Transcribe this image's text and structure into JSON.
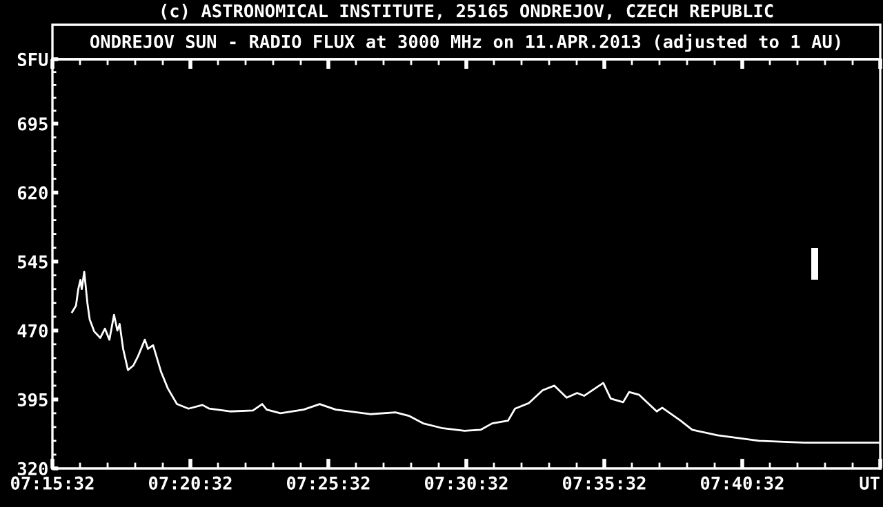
{
  "chart_data": {
    "type": "line",
    "title": "ONDREJOV SUN - RADIO FLUX at 3000 MHz on 11.APR.2013 (adjusted to 1 AU)",
    "annotations": [
      "(c) ASTRONOMICAL INSTITUTE, 25165 ONDREJOV, CZECH REPUBLIC"
    ],
    "xlim": [
      7.258889,
      7.758889
    ],
    "xticks": [
      {
        "value": 7.258889,
        "label": "07:15:32"
      },
      {
        "value": 7.342222,
        "label": "07:20:32"
      },
      {
        "value": 7.425556,
        "label": "07:25:32"
      },
      {
        "value": 7.508889,
        "label": "07:30:32"
      },
      {
        "value": 7.592222,
        "label": "07:35:32"
      },
      {
        "value": 7.675556,
        "label": "07:40:32"
      },
      {
        "value": 7.758889,
        "label": "UT"
      }
    ],
    "ylim": [
      320,
      765
    ],
    "yticks": [
      320,
      395,
      470,
      545,
      620,
      695,
      {
        "value": 765,
        "label": "SFU"
      }
    ],
    "grid": false,
    "legend": false,
    "marker": "none",
    "line_style": "solid",
    "series": [
      {
        "color": "#ffffff",
        "x": [
          7.2708,
          7.2731,
          7.2745,
          7.2758,
          7.2766,
          7.2781,
          7.28,
          7.2814,
          7.2841,
          7.2878,
          7.2906,
          7.2933,
          7.2961,
          7.2981,
          7.2995,
          7.3016,
          7.3045,
          7.3078,
          7.3106,
          7.3147,
          7.3166,
          7.3197,
          7.3245,
          7.3286,
          7.3341,
          7.3411,
          7.3495,
          7.3536,
          7.3661,
          7.38,
          7.3856,
          7.3883,
          7.3966,
          7.4106,
          7.4203,
          7.43,
          7.4508,
          7.4661,
          7.4745,
          7.4828,
          7.4939,
          7.5078,
          7.5175,
          7.5245,
          7.5341,
          7.5383,
          7.5466,
          7.555,
          7.562,
          7.5695,
          7.5758,
          7.58,
          7.5916,
          7.5961,
          7.6036,
          7.6072,
          7.6133,
          7.6239,
          7.6272,
          7.6383,
          7.6453,
          7.6606,
          7.6856,
          7.7133,
          7.7578
        ],
        "values": [
          490,
          497,
          515,
          525,
          515,
          534,
          500,
          482,
          469,
          462,
          472,
          460,
          487,
          470,
          477,
          450,
          427,
          432,
          442,
          460,
          450,
          454,
          425,
          407,
          390,
          385,
          389,
          385,
          382,
          383,
          390,
          384,
          380,
          384,
          390,
          384,
          379,
          381,
          377,
          369,
          364,
          361,
          362,
          369,
          372,
          385,
          391,
          405,
          410,
          397,
          402,
          399,
          413,
          396,
          392,
          403,
          400,
          382,
          386,
          372,
          362,
          356,
          350,
          348,
          348
        ]
      }
    ]
  }
}
